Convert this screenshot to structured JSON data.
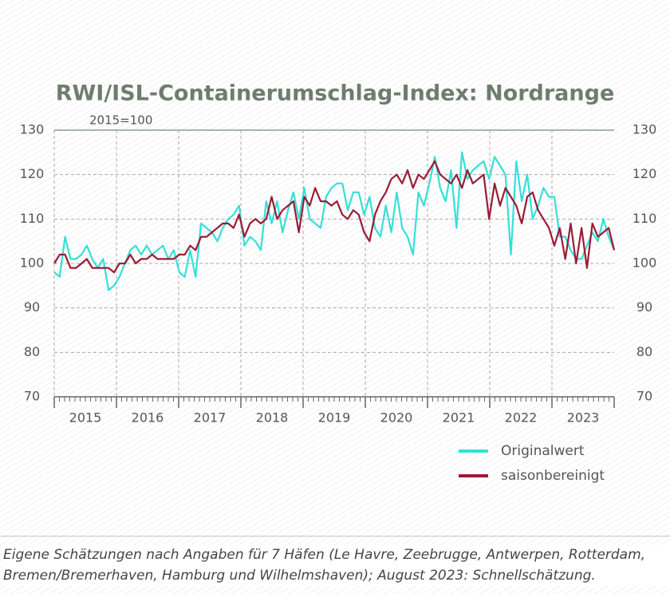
{
  "chart_data": {
    "type": "line",
    "title": "RWI/ISL-Containerumschlag-Index: Nordrange",
    "subtitle": "2015=100",
    "year_labels": [
      "2015",
      "2016",
      "2017",
      "2018",
      "2019",
      "2020",
      "2021",
      "2022",
      "2023"
    ],
    "ylim": [
      70,
      130
    ],
    "yticks": [
      70,
      80,
      90,
      100,
      110,
      120,
      130
    ],
    "grid": true,
    "series": [
      {
        "name": "Originalwert",
        "color": "#33e0d8",
        "values": [
          98,
          97,
          106,
          101,
          101,
          102,
          104,
          101,
          99,
          101,
          94,
          95,
          97,
          100,
          103,
          104,
          102,
          104,
          102,
          103,
          104,
          101,
          103,
          98,
          97,
          103,
          97,
          109,
          108,
          107,
          105,
          108,
          110,
          111,
          113,
          104,
          106,
          105,
          103,
          114,
          109,
          114,
          107,
          112,
          116,
          110,
          117,
          110,
          109,
          108,
          115,
          117,
          118,
          118,
          112,
          116,
          116,
          111,
          115,
          108,
          106,
          113,
          107,
          116,
          108,
          106,
          102,
          116,
          113,
          118,
          124,
          117,
          114,
          121,
          108,
          125,
          119,
          121,
          122,
          123,
          119,
          124,
          122,
          120,
          102,
          123,
          114,
          120,
          110,
          113,
          117,
          115,
          115,
          106,
          106,
          103,
          101,
          101,
          104,
          107,
          105,
          110,
          106,
          103
        ]
      },
      {
        "name": "saisonbereinigt",
        "color": "#9b1b35",
        "values": [
          100,
          102,
          102,
          99,
          99,
          100,
          101,
          99,
          99,
          99,
          99,
          98,
          100,
          100,
          102,
          100,
          101,
          101,
          102,
          101,
          101,
          101,
          101,
          102,
          102,
          104,
          103,
          106,
          106,
          107,
          108,
          109,
          109,
          108,
          111,
          106,
          109,
          110,
          109,
          110,
          115,
          110,
          112,
          113,
          114,
          107,
          115,
          113,
          117,
          114,
          114,
          113,
          114,
          111,
          110,
          112,
          111,
          107,
          105,
          111,
          114,
          116,
          119,
          120,
          118,
          121,
          117,
          120,
          119,
          121,
          123,
          120,
          119,
          118,
          120,
          117,
          121,
          118,
          119,
          120,
          110,
          118,
          113,
          117,
          115,
          113,
          109,
          115,
          116,
          112,
          110,
          108,
          104,
          108,
          101,
          109,
          100,
          108,
          99,
          109,
          106,
          107,
          108,
          103
        ]
      }
    ]
  },
  "footnote": [
    "Eigene Schätzungen nach Angaben für 7 Häfen (Le Havre, Zeebrugge, Antwerpen, Rotterdam,",
    "Bremen/Bremerhaven, Hamburg und Wilhelmshaven); August 2023: Schnellschätzung."
  ]
}
